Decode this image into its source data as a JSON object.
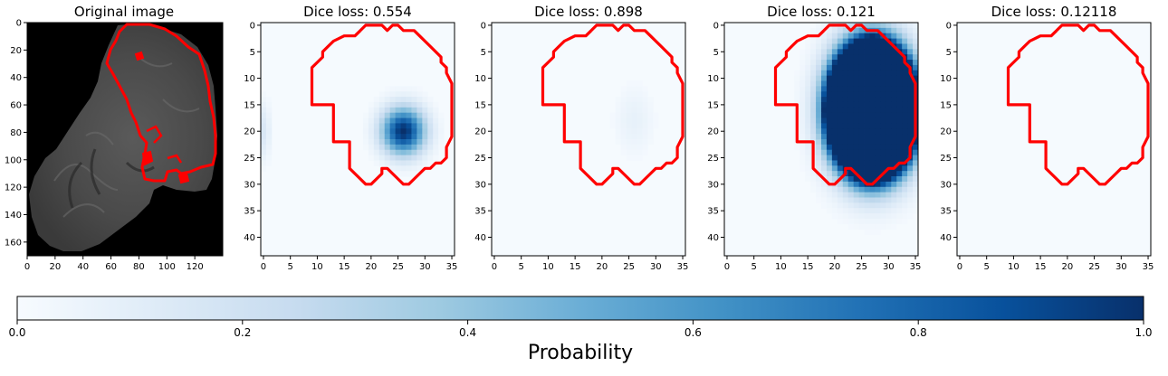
{
  "colormap": {
    "name": "Blues",
    "stops": [
      "#f7fbff",
      "#deebf7",
      "#c6dbef",
      "#9ecae1",
      "#6baed6",
      "#4292c6",
      "#2171b5",
      "#08519c",
      "#08306b"
    ]
  },
  "contour_color": "#ff0000",
  "panels": [
    {
      "title": "Original image",
      "kind": "mri",
      "xticks": [
        "0",
        "20",
        "40",
        "60",
        "80",
        "100",
        "120"
      ],
      "yticks": [
        "0",
        "20",
        "40",
        "60",
        "80",
        "100",
        "120",
        "140",
        "160"
      ]
    },
    {
      "title": "Dice loss: 0.554",
      "kind": "prediction",
      "xticks": [
        "0",
        "5",
        "10",
        "15",
        "20",
        "25",
        "30",
        "35"
      ],
      "yticks": [
        "0",
        "5",
        "10",
        "15",
        "20",
        "25",
        "30",
        "35",
        "40"
      ]
    },
    {
      "title": "Dice loss: 0.898",
      "kind": "prediction",
      "xticks": [
        "0",
        "5",
        "10",
        "15",
        "20",
        "25",
        "30",
        "35"
      ],
      "yticks": [
        "0",
        "5",
        "10",
        "15",
        "20",
        "25",
        "30",
        "35",
        "40"
      ]
    },
    {
      "title": "Dice loss: 0.121",
      "kind": "prediction",
      "xticks": [
        "0",
        "5",
        "10",
        "15",
        "20",
        "25",
        "30",
        "35"
      ],
      "yticks": [
        "0",
        "5",
        "10",
        "15",
        "20",
        "25",
        "30",
        "35",
        "40"
      ]
    },
    {
      "title": "Dice loss: 0.12118",
      "kind": "prediction",
      "xticks": [
        "0",
        "5",
        "10",
        "15",
        "20",
        "25",
        "30",
        "35"
      ],
      "yticks": [
        "0",
        "5",
        "10",
        "15",
        "20",
        "25",
        "30",
        "35",
        "40"
      ]
    }
  ],
  "colorbar": {
    "label": "Probability",
    "ticks": [
      "0.0",
      "0.2",
      "0.4",
      "0.6",
      "0.8",
      "1.0"
    ],
    "range": [
      0,
      1
    ]
  },
  "chart_data": [
    {
      "type": "heatmap",
      "title": "Original image",
      "xlim": [
        0,
        140
      ],
      "ylim": [
        170,
        0
      ],
      "description_values": "grayscale brain MRI slice with red tumor contour"
    },
    {
      "type": "heatmap",
      "title": "Dice loss: 0.554",
      "xlim": [
        0,
        35
      ],
      "ylim": [
        44,
        0
      ],
      "blobs": [
        {
          "cx": 26,
          "cy": 20,
          "rx": 4.5,
          "ry": 5,
          "peak": 1.0
        },
        {
          "cx": 0,
          "cy": 20,
          "rx": 1.5,
          "ry": 6,
          "peak": 0.15
        }
      ]
    },
    {
      "type": "heatmap",
      "title": "Dice loss: 0.898",
      "xlim": [
        0,
        35
      ],
      "ylim": [
        44,
        0
      ],
      "blobs": [
        {
          "cx": 26,
          "cy": 18,
          "rx": 4,
          "ry": 7,
          "peak": 0.08
        }
      ]
    },
    {
      "type": "heatmap",
      "title": "Dice loss: 0.121",
      "xlim": [
        0,
        35
      ],
      "ylim": [
        44,
        0
      ],
      "blobs": [
        {
          "cx": 27,
          "cy": 16,
          "rx": 9,
          "ry": 14,
          "peak": 1.0,
          "flat": true
        }
      ]
    },
    {
      "type": "heatmap",
      "title": "Dice loss: 0.12118",
      "xlim": [
        0,
        35
      ],
      "ylim": [
        44,
        0
      ],
      "blobs": []
    }
  ]
}
